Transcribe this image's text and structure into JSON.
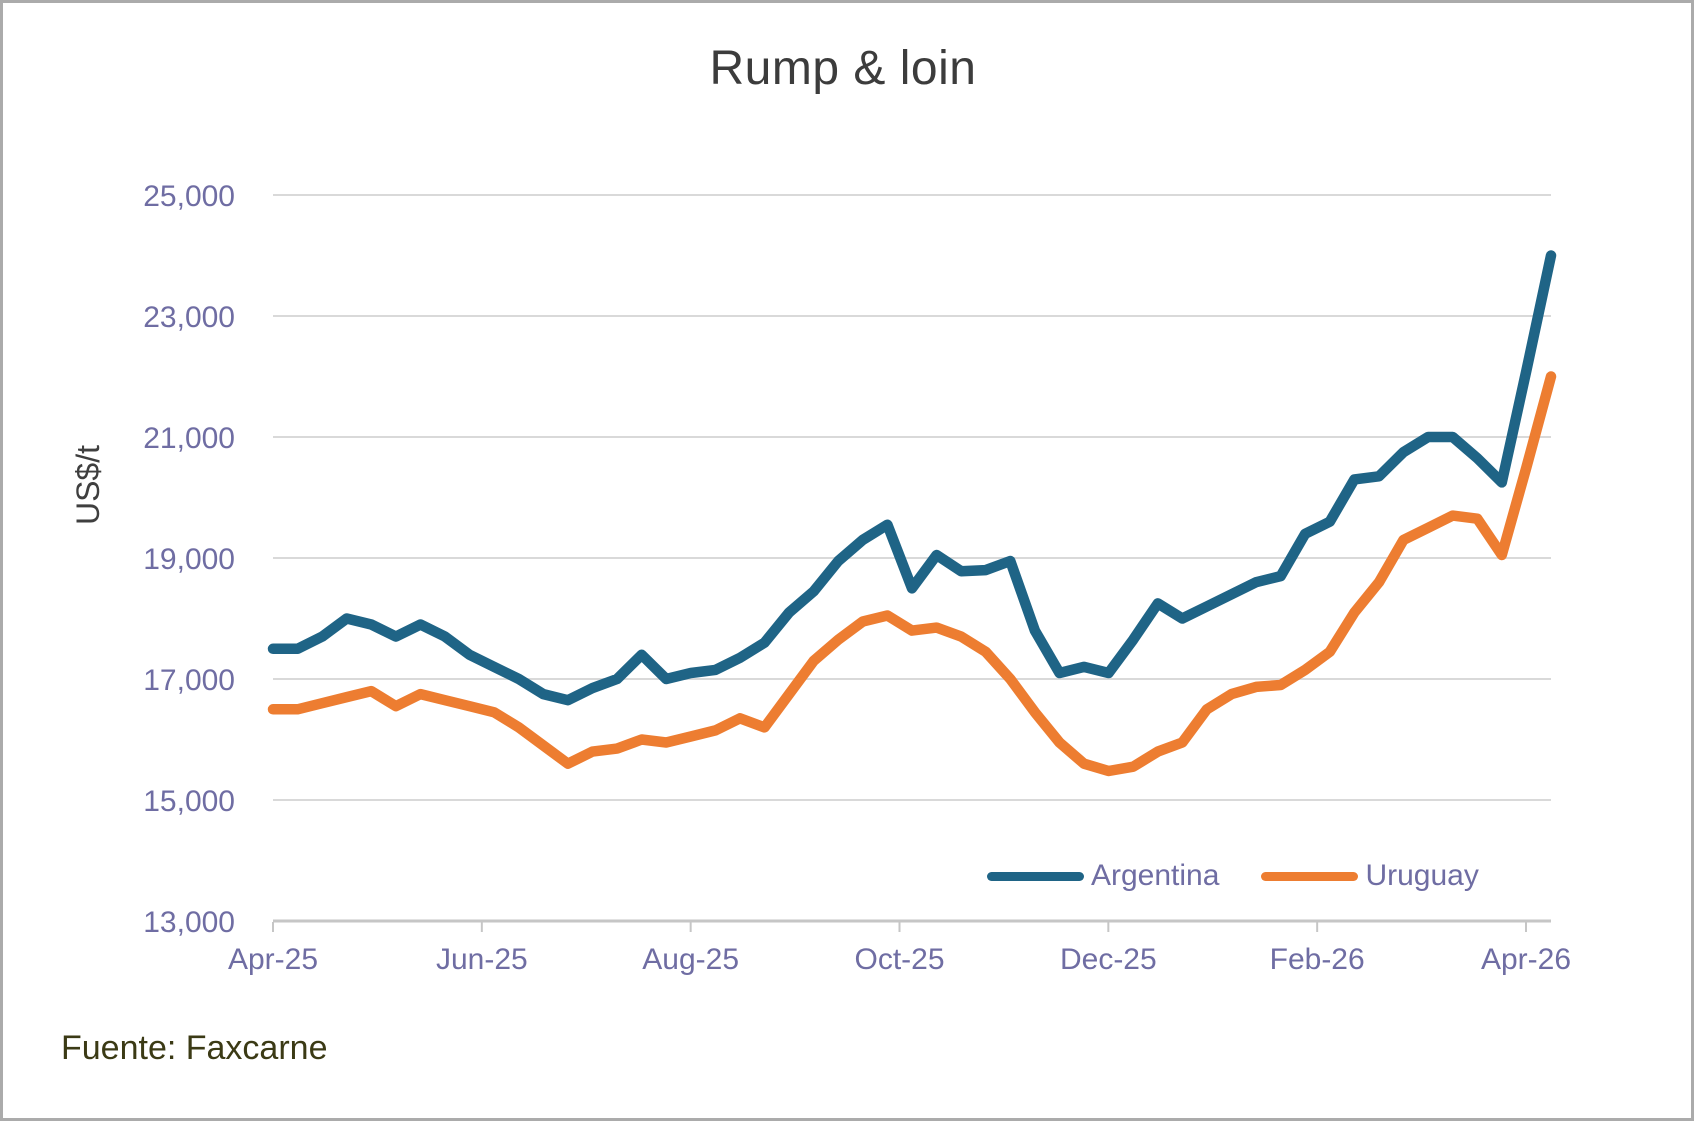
{
  "title": "Rump & loin",
  "y_axis_title": "US$/t",
  "source": "Fuente: Faxcarne",
  "colors": {
    "argentina_line": "#1f6486",
    "uruguay_line": "#ed7d31",
    "tick_label": "#6f6da3",
    "title_text": "#3c3c3c",
    "source_text": "#3b3a15",
    "gridline": "#d9d9d9",
    "axis_line": "#c6c6c6"
  },
  "chart_data": {
    "type": "line",
    "title": "Rump & loin",
    "xlabel": "",
    "ylabel": "US$/t",
    "frequency": "weekly",
    "x_tick_labels": [
      "Apr-25",
      "Jun-25",
      "Aug-25",
      "Oct-25",
      "Dec-25",
      "Feb-26",
      "Apr-26"
    ],
    "y_tick_labels": [
      "13,000",
      "15,000",
      "17,000",
      "19,000",
      "21,000",
      "23,000",
      "25,000"
    ],
    "ylim": [
      13000,
      25000
    ],
    "y_tick_step": 2000,
    "grid": "horizontal",
    "legend_position": "bottom-right-inside",
    "series": [
      {
        "name": "Argentina",
        "color": "#1f6486",
        "values": [
          17500,
          17500,
          17700,
          18000,
          17900,
          17700,
          17900,
          17700,
          17400,
          17200,
          17000,
          16750,
          16650,
          16850,
          17000,
          17400,
          17000,
          17100,
          17150,
          17350,
          17600,
          18100,
          18450,
          18950,
          19300,
          19550,
          18500,
          19050,
          18780,
          18800,
          18950,
          17800,
          17100,
          17200,
          17100,
          17650,
          18250,
          18000,
          18200,
          18400,
          18600,
          18700,
          19400,
          19600,
          20300,
          20350,
          20750,
          21000,
          21000,
          20650,
          20250,
          22100,
          24000
        ]
      },
      {
        "name": "Uruguay",
        "color": "#ed7d31",
        "values": [
          16500,
          16500,
          16600,
          16700,
          16800,
          16550,
          16750,
          16650,
          16550,
          16450,
          16200,
          15900,
          15600,
          15800,
          15850,
          16000,
          15950,
          16050,
          16150,
          16350,
          16200,
          16750,
          17300,
          17650,
          17950,
          18050,
          17800,
          17850,
          17700,
          17450,
          17000,
          16450,
          15950,
          15600,
          15480,
          15550,
          15800,
          15950,
          16500,
          16750,
          16870,
          16900,
          17150,
          17450,
          18100,
          18600,
          19300,
          19500,
          19700,
          19650,
          19050,
          20500,
          22000
        ]
      }
    ]
  }
}
